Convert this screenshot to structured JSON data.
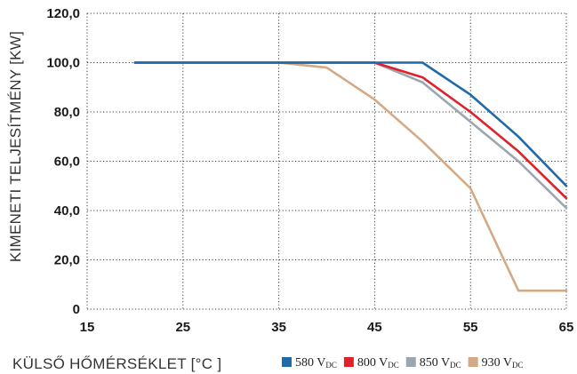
{
  "chart_data": {
    "type": "line",
    "xlabel": "KÜLSŐ HŐMÉRSÉKLET [°C ]",
    "ylabel": "KIMENETI TELJESÍTMÉNY [KW]",
    "xlim": [
      15,
      65
    ],
    "ylim": [
      0,
      120
    ],
    "x_ticks": [
      15,
      25,
      35,
      45,
      55,
      65
    ],
    "x_tick_labels": [
      "15",
      "25",
      "35",
      "45",
      "55",
      "65"
    ],
    "y_ticks": [
      0,
      20,
      40,
      60,
      80,
      100,
      120
    ],
    "y_tick_labels": [
      "0",
      "20,0",
      "40,0",
      "60,0",
      "80,0",
      "100,0",
      "120,0"
    ],
    "grid": true,
    "legend_position": "bottom-right",
    "series": [
      {
        "name": "580 V",
        "name_sub": "DC",
        "color": "#1f6aa8",
        "points": [
          [
            20,
            100
          ],
          [
            45,
            100
          ],
          [
            50,
            100
          ],
          [
            55,
            87
          ],
          [
            60,
            70
          ],
          [
            65,
            50
          ]
        ]
      },
      {
        "name": "800 V",
        "name_sub": "DC",
        "color": "#e0202a",
        "points": [
          [
            20,
            100
          ],
          [
            45,
            100
          ],
          [
            50,
            94
          ],
          [
            55,
            80
          ],
          [
            60,
            64
          ],
          [
            65,
            45
          ]
        ]
      },
      {
        "name": "850 V",
        "name_sub": "DC",
        "color": "#9ba6ae",
        "points": [
          [
            20,
            100
          ],
          [
            45,
            100
          ],
          [
            50,
            92
          ],
          [
            55,
            76
          ],
          [
            60,
            60
          ],
          [
            65,
            41
          ]
        ]
      },
      {
        "name": "930 V",
        "name_sub": "DC",
        "color": "#d4a985",
        "points": [
          [
            20,
            100
          ],
          [
            35,
            100
          ],
          [
            40,
            98
          ],
          [
            45,
            85
          ],
          [
            50,
            68
          ],
          [
            55,
            49
          ],
          [
            60,
            7.5
          ],
          [
            65,
            7.5
          ]
        ]
      }
    ]
  }
}
